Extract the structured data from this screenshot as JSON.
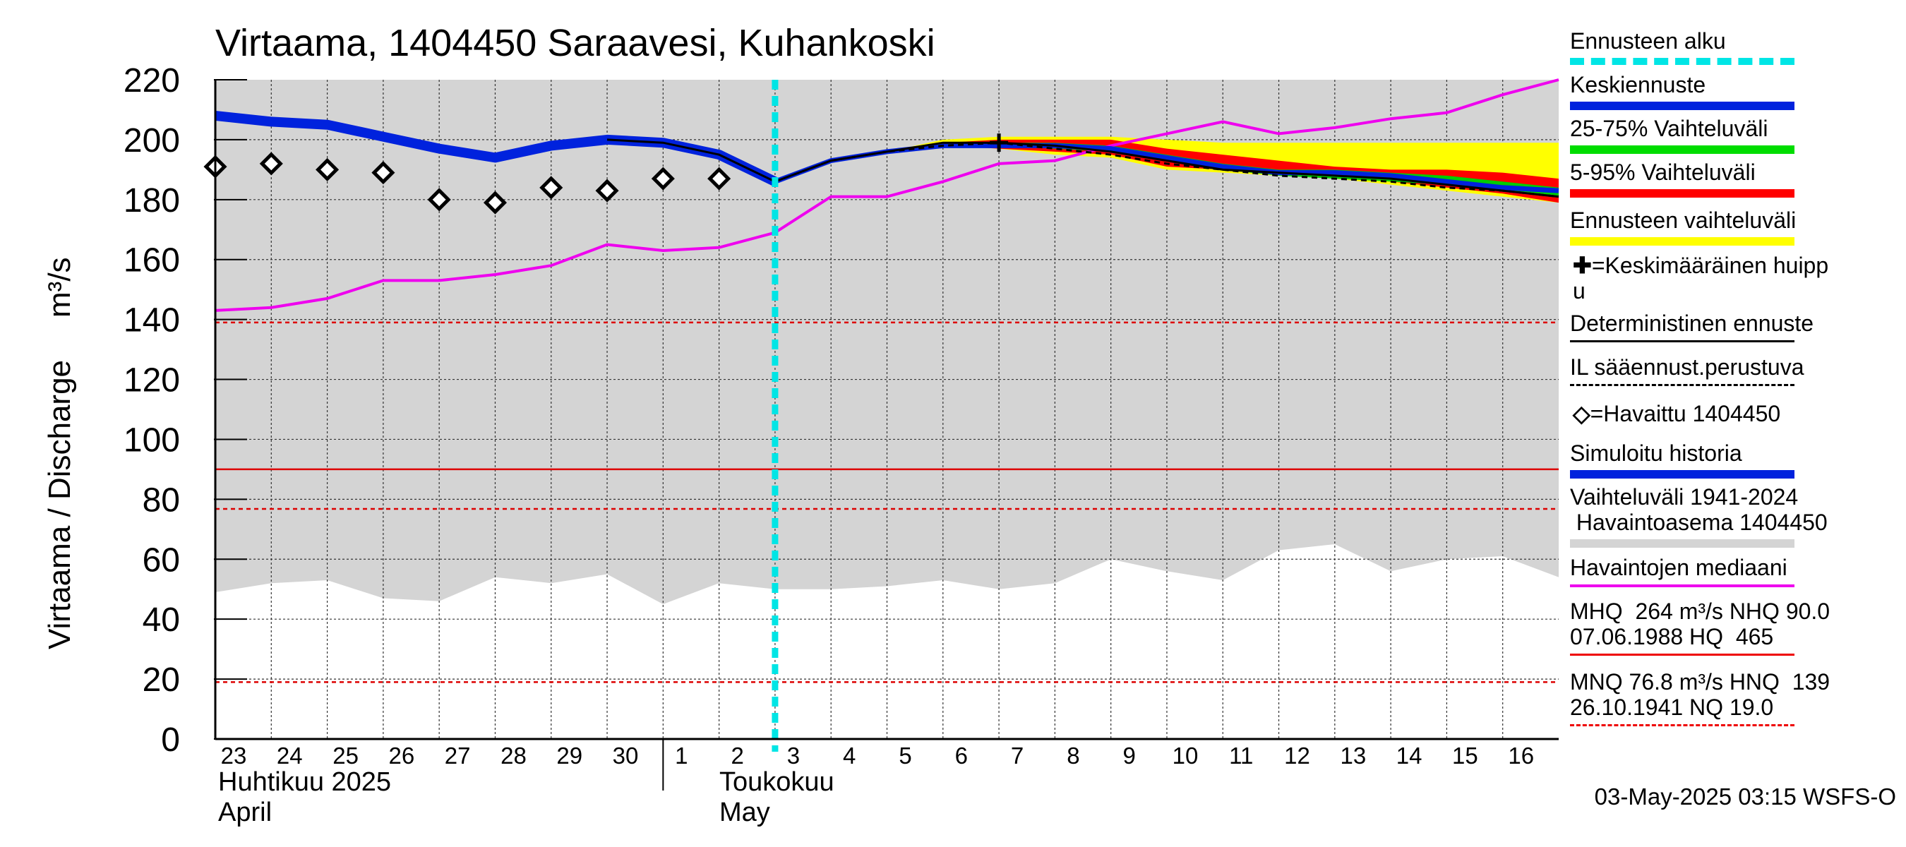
{
  "title": "Virtaama, 1404450 Saraavesi, Kuhankoski",
  "ylabel": "Virtaama / Discharge",
  "yunit": "m³/s",
  "footer": "03-May-2025 03:15 WSFS-O",
  "x_month_labels": {
    "april_fi": "Huhtikuu  2025",
    "april_en": "April",
    "may_fi": "Toukokuu",
    "may_en": "May"
  },
  "legend": [
    {
      "id": "forecast-start",
      "text": "Ennusteen alku",
      "color": "#00e5e5",
      "style": "dashed",
      "width": 10
    },
    {
      "id": "mean-forecast",
      "text": "Keskiennuste",
      "color": "#0022dd",
      "style": "solid",
      "width": 12
    },
    {
      "id": "range-25-75",
      "text": "25-75% Vaihteluväli",
      "color": "#00dd00",
      "style": "solid",
      "width": 12
    },
    {
      "id": "range-5-95",
      "text": "5-95% Vaihteluväli",
      "color": "#ff0000",
      "style": "solid",
      "width": 12
    },
    {
      "id": "forecast-range",
      "text": "Ennusteen vaihteluväli",
      "color": "#ffff00",
      "style": "solid",
      "width": 12
    },
    {
      "id": "mean-peak",
      "text": "=Keskimääräinen huipp\nu",
      "color": "#000000",
      "style": "none",
      "width": 0,
      "marker": "plus"
    },
    {
      "id": "deterministic",
      "text": "Deterministinen ennuste",
      "color": "#000000",
      "style": "solid",
      "width": 3
    },
    {
      "id": "il-forecast",
      "text": "IL sääennust.perustuva",
      "color": "#000000",
      "style": "dashed",
      "width": 3
    },
    {
      "id": "observed",
      "text": "=Havaittu 1404450",
      "color": "#000000",
      "style": "none",
      "width": 0,
      "marker": "diamond"
    },
    {
      "id": "simulated",
      "text": "Simuloitu historia",
      "color": "#0022dd",
      "style": "solid",
      "width": 12
    },
    {
      "id": "hist-range",
      "text": "Vaihteluväli 1941-2024\n Havaintoasema 1404450",
      "color": "#d4d4d4",
      "style": "solid",
      "width": 12
    },
    {
      "id": "median",
      "text": "Havaintojen mediaani",
      "color": "#ee00ee",
      "style": "solid",
      "width": 4
    },
    {
      "id": "mhq",
      "text": "MHQ  264 m³/s NHQ 90.0\n07.06.1988 HQ  465",
      "color": "#ee0000",
      "style": "solid",
      "width": 3
    },
    {
      "id": "mnq",
      "text": "MNQ 76.8 m³/s HNQ  139\n26.10.1941 NQ 19.0",
      "color": "#ee0000",
      "style": "dashed",
      "width": 3
    }
  ],
  "chart_data": {
    "type": "line",
    "title": "Virtaama, 1404450 Saraavesi, Kuhankoski",
    "ylabel": "Virtaama / Discharge  m³/s",
    "ylim": [
      0,
      220
    ],
    "yticks": [
      0,
      20,
      40,
      60,
      80,
      100,
      120,
      140,
      160,
      180,
      200,
      220
    ],
    "xlim": [
      0,
      24
    ],
    "x_day_labels": [
      "23",
      "24",
      "25",
      "26",
      "27",
      "28",
      "29",
      "30",
      "1",
      "2",
      "3",
      "4",
      "5",
      "6",
      "7",
      "8",
      "9",
      "10",
      "11",
      "12",
      "13",
      "14",
      "15",
      "16"
    ],
    "forecast_start_x": 10,
    "reference_lines": [
      {
        "name": "HNQ",
        "value": 139,
        "style": "dashed"
      },
      {
        "name": "NHQ",
        "value": 90.0,
        "style": "solid"
      },
      {
        "name": "MNQ",
        "value": 76.8,
        "style": "dashed"
      },
      {
        "name": "NQ",
        "value": 19.0,
        "style": "dashed"
      }
    ],
    "hist_range_lower": [
      [
        0,
        49
      ],
      [
        1,
        52
      ],
      [
        2,
        53
      ],
      [
        3,
        47
      ],
      [
        4,
        46
      ],
      [
        5,
        54
      ],
      [
        6,
        52
      ],
      [
        7,
        55
      ],
      [
        8,
        45
      ],
      [
        9,
        52
      ],
      [
        10,
        50
      ],
      [
        11,
        50
      ],
      [
        12,
        51
      ],
      [
        13,
        53
      ],
      [
        14,
        50
      ],
      [
        15,
        52
      ],
      [
        16,
        60
      ],
      [
        17,
        56
      ],
      [
        18,
        53
      ],
      [
        19,
        63
      ],
      [
        20,
        65
      ],
      [
        21,
        56
      ],
      [
        22,
        60
      ],
      [
        23,
        61
      ],
      [
        24,
        54
      ]
    ],
    "observed": [
      [
        0,
        191
      ],
      [
        1,
        192
      ],
      [
        2,
        190
      ],
      [
        3,
        189
      ],
      [
        4,
        180
      ],
      [
        5,
        179
      ],
      [
        6,
        184
      ],
      [
        7,
        183
      ],
      [
        8,
        187
      ],
      [
        9,
        187
      ]
    ],
    "simulated": [
      [
        0,
        208
      ],
      [
        1,
        206
      ],
      [
        2,
        205
      ],
      [
        3,
        201
      ],
      [
        4,
        197
      ],
      [
        5,
        194
      ],
      [
        6,
        198
      ],
      [
        7,
        200
      ],
      [
        8,
        199
      ],
      [
        9,
        195
      ],
      [
        10,
        186
      ]
    ],
    "median": [
      [
        0,
        143
      ],
      [
        1,
        144
      ],
      [
        2,
        147
      ],
      [
        3,
        153
      ],
      [
        4,
        153
      ],
      [
        5,
        155
      ],
      [
        6,
        158
      ],
      [
        7,
        165
      ],
      [
        8,
        163
      ],
      [
        9,
        164
      ],
      [
        10,
        169
      ],
      [
        11,
        181
      ],
      [
        12,
        181
      ],
      [
        13,
        186
      ],
      [
        14,
        192
      ],
      [
        15,
        193
      ],
      [
        16,
        198
      ],
      [
        17,
        202
      ],
      [
        18,
        206
      ],
      [
        19,
        202
      ],
      [
        20,
        204
      ],
      [
        21,
        207
      ],
      [
        22,
        209
      ],
      [
        23,
        215
      ],
      [
        24,
        220
      ]
    ],
    "mean_forecast": [
      [
        10,
        186
      ],
      [
        11,
        193
      ],
      [
        12,
        196
      ],
      [
        13,
        198
      ],
      [
        14,
        198
      ],
      [
        15,
        198
      ],
      [
        16,
        197
      ],
      [
        17,
        194
      ],
      [
        18,
        191
      ],
      [
        19,
        189
      ],
      [
        20,
        189
      ],
      [
        21,
        188
      ],
      [
        22,
        186
      ],
      [
        23,
        184
      ],
      [
        24,
        183
      ]
    ],
    "deterministic": [
      [
        10,
        186
      ],
      [
        11,
        193
      ],
      [
        12,
        196
      ],
      [
        13,
        199
      ],
      [
        14,
        199
      ],
      [
        15,
        198
      ],
      [
        16,
        196
      ],
      [
        17,
        193
      ],
      [
        18,
        190
      ],
      [
        19,
        189
      ],
      [
        20,
        188
      ],
      [
        21,
        187
      ],
      [
        22,
        185
      ],
      [
        23,
        183
      ],
      [
        24,
        181
      ]
    ],
    "il_forecast": [
      [
        10,
        186
      ],
      [
        11,
        193
      ],
      [
        12,
        196
      ],
      [
        13,
        198
      ],
      [
        14,
        199
      ],
      [
        15,
        197
      ],
      [
        16,
        195
      ],
      [
        17,
        192
      ],
      [
        18,
        190
      ],
      [
        19,
        188
      ],
      [
        20,
        187
      ],
      [
        21,
        186
      ],
      [
        22,
        184
      ],
      [
        23,
        183
      ],
      [
        24,
        181
      ]
    ],
    "range_25_75_upper": [
      [
        10,
        186
      ],
      [
        11,
        193
      ],
      [
        12,
        196
      ],
      [
        13,
        199
      ],
      [
        14,
        199
      ],
      [
        15,
        199
      ],
      [
        16,
        198
      ],
      [
        17,
        195
      ],
      [
        18,
        192
      ],
      [
        19,
        190
      ],
      [
        20,
        190
      ],
      [
        21,
        189
      ],
      [
        22,
        188
      ],
      [
        23,
        186
      ],
      [
        24,
        184
      ]
    ],
    "range_25_75_lower": [
      [
        10,
        186
      ],
      [
        11,
        193
      ],
      [
        12,
        196
      ],
      [
        13,
        198
      ],
      [
        14,
        198
      ],
      [
        15,
        197
      ],
      [
        16,
        196
      ],
      [
        17,
        193
      ],
      [
        18,
        190
      ],
      [
        19,
        188
      ],
      [
        20,
        187
      ],
      [
        21,
        186
      ],
      [
        22,
        185
      ],
      [
        23,
        183
      ],
      [
        24,
        181
      ]
    ],
    "range_5_95_upper": [
      [
        10,
        186
      ],
      [
        11,
        193
      ],
      [
        12,
        196
      ],
      [
        13,
        199
      ],
      [
        14,
        200
      ],
      [
        15,
        200
      ],
      [
        16,
        200
      ],
      [
        17,
        197
      ],
      [
        18,
        195
      ],
      [
        19,
        193
      ],
      [
        20,
        191
      ],
      [
        21,
        190
      ],
      [
        22,
        190
      ],
      [
        23,
        189
      ],
      [
        24,
        187
      ]
    ],
    "range_5_95_lower": [
      [
        10,
        186
      ],
      [
        11,
        193
      ],
      [
        12,
        196
      ],
      [
        13,
        198
      ],
      [
        14,
        197
      ],
      [
        15,
        196
      ],
      [
        16,
        195
      ],
      [
        17,
        191
      ],
      [
        18,
        190
      ],
      [
        19,
        189
      ],
      [
        20,
        188
      ],
      [
        21,
        186
      ],
      [
        22,
        184
      ],
      [
        23,
        182
      ],
      [
        24,
        179
      ]
    ],
    "forecast_range_upper": [
      [
        10,
        186
      ],
      [
        11,
        193
      ],
      [
        12,
        196
      ],
      [
        13,
        200
      ],
      [
        14,
        201
      ],
      [
        15,
        201
      ],
      [
        16,
        201
      ],
      [
        17,
        200
      ],
      [
        18,
        199
      ],
      [
        19,
        199
      ],
      [
        20,
        199
      ],
      [
        21,
        199
      ],
      [
        22,
        199
      ],
      [
        23,
        199
      ],
      [
        24,
        199
      ]
    ],
    "forecast_range_lower": [
      [
        10,
        186
      ],
      [
        11,
        193
      ],
      [
        12,
        196
      ],
      [
        13,
        198
      ],
      [
        14,
        197
      ],
      [
        15,
        195
      ],
      [
        16,
        194
      ],
      [
        17,
        190
      ],
      [
        18,
        189
      ],
      [
        19,
        188
      ],
      [
        20,
        187
      ],
      [
        21,
        185
      ],
      [
        22,
        183
      ],
      [
        23,
        181
      ],
      [
        24,
        179
      ]
    ],
    "mean_peak": {
      "x": 14,
      "y": 199
    }
  }
}
